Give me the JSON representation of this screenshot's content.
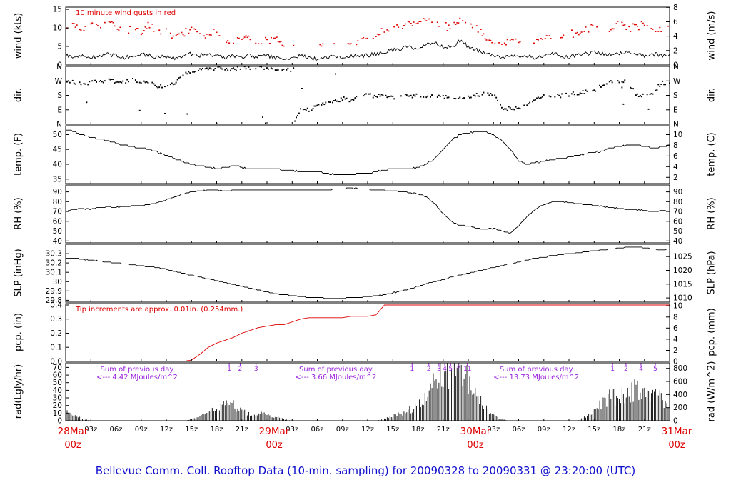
{
  "page": {
    "title": "Bellevue Comm. Coll. Rooftop Data (10-min. sampling) for 20090328  to  20090331 @ 23:20:00  (UTC)"
  },
  "colors": {
    "red": "#dd0000",
    "purple": "#9922dd",
    "title_blue": "#1111cc",
    "line": "#000000"
  },
  "time_axis": {
    "major_labels": [
      {
        "hour": 0,
        "line1": "28Mar",
        "line2": "00z"
      },
      {
        "hour": 24,
        "line1": "29Mar",
        "line2": "00z"
      },
      {
        "hour": 48,
        "line1": "30Mar",
        "line2": "00z"
      },
      {
        "hour": 72,
        "line1": "31Mar",
        "line2": "00z"
      }
    ],
    "minor_labels": [
      {
        "hour": 3,
        "label": "03z"
      },
      {
        "hour": 6,
        "label": "06z"
      },
      {
        "hour": 9,
        "label": "09z"
      },
      {
        "hour": 12,
        "label": "12z"
      },
      {
        "hour": 15,
        "label": "15z"
      },
      {
        "hour": 18,
        "label": "18z"
      },
      {
        "hour": 21,
        "label": "21z"
      },
      {
        "hour": 27,
        "label": "03z"
      },
      {
        "hour": 30,
        "label": "06z"
      },
      {
        "hour": 33,
        "label": "09z"
      },
      {
        "hour": 36,
        "label": "12z"
      },
      {
        "hour": 39,
        "label": "15z"
      },
      {
        "hour": 42,
        "label": "18z"
      },
      {
        "hour": 45,
        "label": "21z"
      },
      {
        "hour": 51,
        "label": "03z"
      },
      {
        "hour": 54,
        "label": "06z"
      },
      {
        "hour": 57,
        "label": "09z"
      },
      {
        "hour": 60,
        "label": "12z"
      },
      {
        "hour": 63,
        "label": "15z"
      },
      {
        "hour": 66,
        "label": "18z"
      },
      {
        "hour": 69,
        "label": "21z"
      }
    ]
  },
  "panels": [
    {
      "id": "wind",
      "left_label": "wind (kts)",
      "right_label": "wind (m/s)",
      "range": [
        0,
        15.6
      ],
      "note": "10  minute wind gusts in red",
      "left_ticks": [
        {
          "v": 0,
          "l": "0"
        },
        {
          "v": 5,
          "l": "5"
        },
        {
          "v": 10,
          "l": "10"
        },
        {
          "v": 15,
          "l": "15"
        }
      ],
      "right_ticks": [
        {
          "v": 0,
          "l": "0"
        },
        {
          "v": 3.89,
          "l": "2"
        },
        {
          "v": 7.78,
          "l": "4"
        },
        {
          "v": 11.66,
          "l": "6"
        },
        {
          "v": 15.55,
          "l": "8"
        }
      ]
    },
    {
      "id": "dir",
      "left_label": "dir.",
      "right_label": "dir.",
      "range": [
        0,
        360
      ],
      "left_ticks": [
        {
          "v": 0,
          "l": "N"
        },
        {
          "v": 90,
          "l": "E"
        },
        {
          "v": 180,
          "l": "S"
        },
        {
          "v": 270,
          "l": "W"
        },
        {
          "v": 360,
          "l": "N"
        }
      ],
      "right_ticks": [
        {
          "v": 0,
          "l": "N"
        },
        {
          "v": 90,
          "l": "E"
        },
        {
          "v": 180,
          "l": "S"
        },
        {
          "v": 270,
          "l": "W"
        },
        {
          "v": 360,
          "l": "N"
        }
      ]
    },
    {
      "id": "temp",
      "left_label": "temp. (F)",
      "right_label": "temp. (C)",
      "range": [
        33.5,
        53
      ],
      "left_ticks": [
        {
          "v": 35,
          "l": "35"
        },
        {
          "v": 40,
          "l": "40"
        },
        {
          "v": 45,
          "l": "45"
        },
        {
          "v": 50,
          "l": "50"
        }
      ],
      "right_ticks": [
        {
          "v": 35.6,
          "l": "2"
        },
        {
          "v": 39.2,
          "l": "4"
        },
        {
          "v": 42.8,
          "l": "6"
        },
        {
          "v": 46.4,
          "l": "8"
        },
        {
          "v": 50,
          "l": "10"
        }
      ]
    },
    {
      "id": "rh",
      "left_label": "RH (%)",
      "right_label": "RH (%)",
      "range": [
        38,
        97
      ],
      "left_ticks": [
        {
          "v": 40,
          "l": "40"
        },
        {
          "v": 50,
          "l": "50"
        },
        {
          "v": 60,
          "l": "60"
        },
        {
          "v": 70,
          "l": "70"
        },
        {
          "v": 80,
          "l": "80"
        },
        {
          "v": 90,
          "l": "90"
        }
      ],
      "right_ticks": [
        {
          "v": 40,
          "l": "40"
        },
        {
          "v": 50,
          "l": "50"
        },
        {
          "v": 60,
          "l": "60"
        },
        {
          "v": 70,
          "l": "70"
        },
        {
          "v": 80,
          "l": "80"
        },
        {
          "v": 90,
          "l": "90"
        }
      ]
    },
    {
      "id": "slp",
      "left_label": "SLP (inHg)",
      "right_label": "SLP (hPa)",
      "range": [
        29.78,
        30.4
      ],
      "left_ticks": [
        {
          "v": 29.8,
          "l": "29.8"
        },
        {
          "v": 29.9,
          "l": "29.9"
        },
        {
          "v": 30.0,
          "l": "30"
        },
        {
          "v": 30.1,
          "l": "30.1"
        },
        {
          "v": 30.2,
          "l": "30.2"
        },
        {
          "v": 30.3,
          "l": "30.3"
        }
      ],
      "right_ticks": [
        {
          "v": 29.825,
          "l": "1010"
        },
        {
          "v": 29.973,
          "l": "1015"
        },
        {
          "v": 30.121,
          "l": "1020"
        },
        {
          "v": 30.268,
          "l": "1025"
        }
      ]
    },
    {
      "id": "pcp",
      "left_label": "pcp. (in)",
      "right_label": "pcp. (mm)",
      "range": [
        0,
        0.41
      ],
      "note": "Tip increments are approx. 0.01in. (0.254mm.)",
      "left_ticks": [
        {
          "v": 0,
          "l": "0.0"
        },
        {
          "v": 0.1,
          "l": "0.1"
        },
        {
          "v": 0.2,
          "l": "0.2"
        },
        {
          "v": 0.3,
          "l": "0.3"
        },
        {
          "v": 0.4,
          "l": "0.4"
        }
      ],
      "right_ticks": [
        {
          "v": 0,
          "l": "0"
        },
        {
          "v": 0.0787,
          "l": "2"
        },
        {
          "v": 0.1575,
          "l": "4"
        },
        {
          "v": 0.2362,
          "l": "6"
        },
        {
          "v": 0.315,
          "l": "8"
        },
        {
          "v": 0.3937,
          "l": "10"
        }
      ]
    },
    {
      "id": "rad",
      "left_label": "rad(Lgly/hr)",
      "right_label": "rad (W/m^2)",
      "range": [
        0,
        76
      ],
      "left_ticks": [
        {
          "v": 0,
          "l": "0"
        },
        {
          "v": 10,
          "l": "10"
        },
        {
          "v": 20,
          "l": "20"
        },
        {
          "v": 30,
          "l": "30"
        },
        {
          "v": 40,
          "l": "40"
        },
        {
          "v": 50,
          "l": "50"
        },
        {
          "v": 60,
          "l": "60"
        },
        {
          "v": 70,
          "l": "70"
        }
      ],
      "right_ticks": [
        {
          "v": 0,
          "l": "0"
        },
        {
          "v": 17.2,
          "l": "200"
        },
        {
          "v": 34.4,
          "l": "400"
        },
        {
          "v": 51.6,
          "l": "600"
        },
        {
          "v": 68.8,
          "l": "800"
        }
      ],
      "sums": [
        {
          "hour": 8.5,
          "line1": "Sum of previous day",
          "line2": "<--- 4.42 MJoules/m^2"
        },
        {
          "hour": 32.2,
          "line1": "Sum of previous day",
          "line2": "<--- 3.66 MJoules/m^2"
        },
        {
          "hour": 56.1,
          "line1": "Sum of previous day",
          "line2": "<--- 13.73 MJoules/m^2"
        }
      ],
      "milestones": [
        {
          "hour": 19.5,
          "label": "1"
        },
        {
          "hour": 20.8,
          "label": "2"
        },
        {
          "hour": 22.7,
          "label": "3"
        },
        {
          "hour": 41.3,
          "label": "1"
        },
        {
          "hour": 43.3,
          "label": "2"
        },
        {
          "hour": 44.5,
          "label": "3"
        },
        {
          "hour": 45.2,
          "label": "4"
        },
        {
          "hour": 45.9,
          "label": "5"
        },
        {
          "hour": 46.8,
          "label": "7"
        },
        {
          "hour": 47.9,
          "label": "11"
        },
        {
          "hour": 65.2,
          "label": "1"
        },
        {
          "hour": 66.8,
          "label": "2"
        },
        {
          "hour": 68.6,
          "label": "4"
        },
        {
          "hour": 70.3,
          "label": "5"
        }
      ]
    }
  ],
  "chart_data": {
    "type": "line",
    "title": "Bellevue Comm. Coll. Rooftop Data (10-min. sampling) for 20090328 to 20090331 @ 23:20:00 (UTC)",
    "x_unit": "hours since 2009-03-28 00:00 UTC",
    "x_hours_range": [
      0,
      72
    ],
    "x_hours_step": 1,
    "wind_kts": [
      2.5,
      2.1,
      2.6,
      2.0,
      2.4,
      3.0,
      2.5,
      2.0,
      2.6,
      3.1,
      2.5,
      2.0,
      2.4,
      2.0,
      2.5,
      3.0,
      2.6,
      3.0,
      2.5,
      2.0,
      2.5,
      2.1,
      2.6,
      2.1,
      2.5,
      2.0,
      1.6,
      2.0,
      2.5,
      2.0,
      1.5,
      2.0,
      2.5,
      2.0,
      2.5,
      2.1,
      2.6,
      3.0,
      3.4,
      4.0,
      4.5,
      5.0,
      4.2,
      5.5,
      6.0,
      5.0,
      4.6,
      6.5,
      5.0,
      4.0,
      3.0,
      2.5,
      2.0,
      2.5,
      2.1,
      2.5,
      2.0,
      2.6,
      3.0,
      2.5,
      2.1,
      2.6,
      3.0,
      3.5,
      3.0,
      2.6,
      3.0,
      3.5,
      3.0,
      2.5,
      3.0,
      2.6,
      3.0
    ],
    "gust_kts": [
      9.5,
      10.5,
      9.0,
      11.0,
      10.0,
      12.0,
      9.5,
      8.5,
      10.5,
      9.0,
      11.0,
      8.5,
      9.0,
      7.5,
      8.5,
      10.0,
      7.5,
      8.0,
      9.0,
      7.0,
      6.5,
      8.0,
      7.0,
      6.5,
      6.5,
      7.0,
      4.5,
      4.0,
      4.5,
      4.0,
      4.5,
      5.0,
      4.5,
      4.0,
      5.5,
      6.0,
      7.0,
      8.0,
      9.0,
      10.0,
      9.5,
      11.0,
      10.5,
      12.0,
      11.5,
      10.5,
      9.5,
      12.5,
      11.0,
      9.5,
      8.0,
      7.0,
      6.0,
      6.5,
      5.5,
      5.0,
      6.0,
      7.0,
      7.5,
      7.0,
      8.0,
      9.0,
      10.0,
      9.5,
      8.5,
      10.0,
      11.0,
      9.5,
      10.5,
      11.0,
      10.0,
      9.0,
      9.5
    ],
    "dir_deg": [
      255,
      260,
      250,
      262,
      258,
      268,
      270,
      266,
      272,
      268,
      262,
      240,
      232,
      250,
      300,
      330,
      348,
      340,
      354,
      348,
      344,
      350,
      354,
      350,
      355,
      350,
      340,
      330,
      100,
      90,
      110,
      125,
      140,
      160,
      150,
      170,
      180,
      176,
      170,
      166,
      172,
      176,
      180,
      178,
      175,
      172,
      170,
      168,
      176,
      180,
      186,
      190,
      95,
      100,
      92,
      112,
      150,
      170,
      180,
      176,
      186,
      190,
      200,
      212,
      250,
      262,
      270,
      264,
      186,
      180,
      192,
      258,
      255
    ],
    "temp_f": [
      51.5,
      51.0,
      50.0,
      49.0,
      48.5,
      48.0,
      47.0,
      46.5,
      46.0,
      45.5,
      45.0,
      44.0,
      43.0,
      42.0,
      41.0,
      40.0,
      39.5,
      39.0,
      38.5,
      39.0,
      39.5,
      39.0,
      38.5,
      38.5,
      38.5,
      38.5,
      38.0,
      38.0,
      37.5,
      37.5,
      37.5,
      37.0,
      36.5,
      36.5,
      36.5,
      37.0,
      37.0,
      37.5,
      38.0,
      38.5,
      38.5,
      38.5,
      39.0,
      40.0,
      42.0,
      45.0,
      48.0,
      50.0,
      50.5,
      51.0,
      51.0,
      50.0,
      48.0,
      45.0,
      41.0,
      40.0,
      40.5,
      41.0,
      41.5,
      42.0,
      42.5,
      43.0,
      43.5,
      44.0,
      44.5,
      45.5,
      46.0,
      46.5,
      46.5,
      46.0,
      45.5,
      46.0,
      46.5
    ],
    "rh_pct": [
      70,
      72,
      73,
      72,
      74,
      75,
      74,
      75,
      76,
      76,
      77,
      79,
      82,
      85,
      88,
      90,
      91,
      92,
      92,
      91,
      92,
      92,
      92,
      92,
      92,
      92,
      92,
      92,
      92,
      92,
      92,
      92,
      93,
      93,
      94,
      93,
      93,
      92,
      92,
      91,
      90,
      89,
      88,
      85,
      78,
      68,
      60,
      56,
      55,
      53,
      52,
      53,
      50,
      48,
      55,
      65,
      72,
      77,
      80,
      80,
      79,
      78,
      77,
      76,
      75,
      74,
      73,
      72,
      72,
      71,
      70,
      71,
      70
    ],
    "slp_inhg": [
      30.25,
      30.25,
      30.24,
      30.23,
      30.22,
      30.21,
      30.2,
      30.19,
      30.18,
      30.17,
      30.16,
      30.15,
      30.13,
      30.11,
      30.09,
      30.07,
      30.05,
      30.03,
      30.01,
      29.99,
      29.97,
      29.95,
      29.93,
      29.91,
      29.89,
      29.87,
      29.86,
      29.85,
      29.84,
      29.83,
      29.83,
      29.82,
      29.82,
      29.82,
      29.83,
      29.83,
      29.84,
      29.85,
      29.86,
      29.88,
      29.9,
      29.92,
      29.95,
      29.98,
      30.0,
      30.02,
      30.05,
      30.07,
      30.09,
      30.11,
      30.13,
      30.15,
      30.17,
      30.19,
      30.21,
      30.23,
      30.25,
      30.26,
      30.28,
      30.29,
      30.3,
      30.31,
      30.32,
      30.33,
      30.34,
      30.35,
      30.36,
      30.37,
      30.37,
      30.36,
      30.35,
      30.34,
      30.35
    ],
    "pcp_in": [
      0,
      0,
      0,
      0,
      0,
      0,
      0,
      0,
      0,
      0,
      0,
      0,
      0,
      0,
      0,
      0.01,
      0.05,
      0.1,
      0.13,
      0.15,
      0.17,
      0.2,
      0.22,
      0.24,
      0.25,
      0.26,
      0.26,
      0.28,
      0.3,
      0.31,
      0.31,
      0.31,
      0.31,
      0.31,
      0.32,
      0.32,
      0.32,
      0.33,
      0.4,
      0.4,
      0.4,
      0.4,
      0.4,
      0.4,
      0.4,
      0.4,
      0.4,
      0.4,
      0.4,
      0.4,
      0.4,
      0.4,
      0.4,
      0.4,
      0.4,
      0.4,
      0.4,
      0.4,
      0.4,
      0.4,
      0.4,
      0.4,
      0.4,
      0.4,
      0.4,
      0.4,
      0.4,
      0.4,
      0.4,
      0.4,
      0.4,
      0.4,
      0.4
    ],
    "rad_lyhr": [
      12,
      8,
      3,
      0,
      0,
      0,
      0,
      0,
      0,
      0,
      0,
      0,
      0,
      0,
      0,
      2,
      5,
      12,
      18,
      24,
      22,
      12,
      8,
      10,
      8,
      5,
      2,
      0,
      0,
      0,
      0,
      0,
      0,
      0,
      0,
      0,
      0,
      0,
      3,
      6,
      10,
      15,
      22,
      32,
      55,
      70,
      64,
      72,
      58,
      38,
      22,
      8,
      2,
      0,
      0,
      0,
      0,
      0,
      0,
      0,
      0,
      0,
      5,
      15,
      25,
      35,
      30,
      38,
      42,
      34,
      40,
      28,
      18
    ]
  }
}
